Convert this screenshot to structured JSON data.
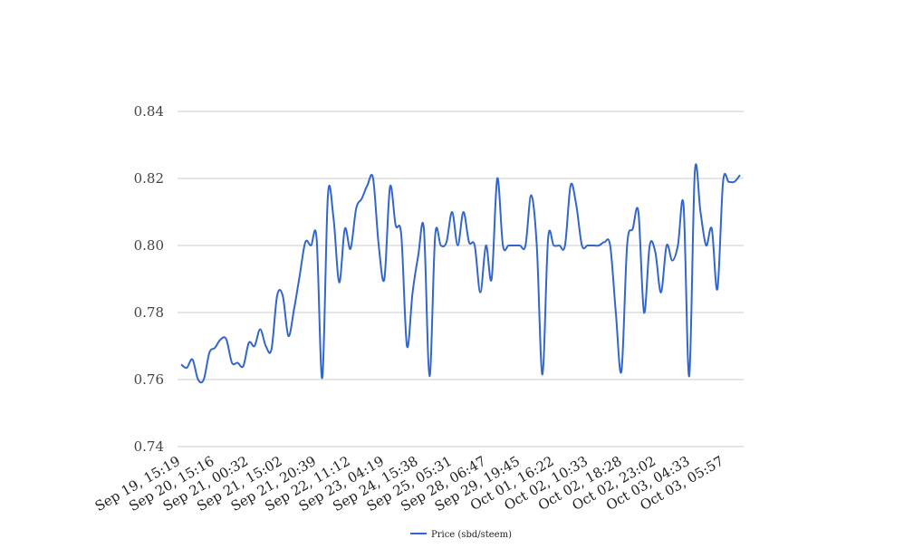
{
  "chart_data": {
    "type": "line",
    "title": "",
    "xlabel": "",
    "ylabel": "",
    "ylim": [
      0.74,
      0.84
    ],
    "yticks": [
      "0.74",
      "0.76",
      "0.78",
      "0.80",
      "0.82",
      "0.84"
    ],
    "grid": true,
    "legend_position": "bottom-center",
    "x_tick_labels": [
      "Sep 19, 15:19",
      "Sep 20, 15:16",
      "Sep 21, 00:32",
      "Sep 21, 15:02",
      "Sep 21, 20:39",
      "Sep 22, 11:12",
      "Sep 23, 04:19",
      "Sep 24, 15:38",
      "Sep 25, 05:31",
      "Sep 28, 06:47",
      "Sep 29, 19:45",
      "Oct 01, 16:22",
      "Oct 02, 10:33",
      "Oct 02, 18:28",
      "Oct 02, 23:02",
      "Oct 03, 04:33",
      "Oct 03, 05:57"
    ],
    "series": [
      {
        "name": "Price (sbd/steem)",
        "color": "#3366cc",
        "values": [
          0.7645,
          0.7635,
          0.766,
          0.76,
          0.76,
          0.768,
          0.7695,
          0.772,
          0.772,
          0.765,
          0.765,
          0.764,
          0.771,
          0.77,
          0.775,
          0.77,
          0.769,
          0.785,
          0.785,
          0.773,
          0.781,
          0.791,
          0.801,
          0.8,
          0.802,
          0.7605,
          0.815,
          0.808,
          0.789,
          0.805,
          0.799,
          0.811,
          0.814,
          0.818,
          0.82,
          0.8,
          0.79,
          0.8175,
          0.806,
          0.803,
          0.77,
          0.786,
          0.797,
          0.805,
          0.761,
          0.803,
          0.8,
          0.801,
          0.81,
          0.8,
          0.81,
          0.801,
          0.8,
          0.786,
          0.8,
          0.79,
          0.82,
          0.8,
          0.8,
          0.8,
          0.8,
          0.8,
          0.815,
          0.8,
          0.7615,
          0.802,
          0.8,
          0.8,
          0.8,
          0.818,
          0.812,
          0.8,
          0.8,
          0.8,
          0.8,
          0.801,
          0.8,
          0.78,
          0.7625,
          0.8,
          0.805,
          0.81,
          0.78,
          0.8,
          0.798,
          0.786,
          0.8,
          0.7955,
          0.8,
          0.812,
          0.761,
          0.822,
          0.81,
          0.8,
          0.805,
          0.787,
          0.819,
          0.819,
          0.819,
          0.821
        ]
      }
    ]
  }
}
